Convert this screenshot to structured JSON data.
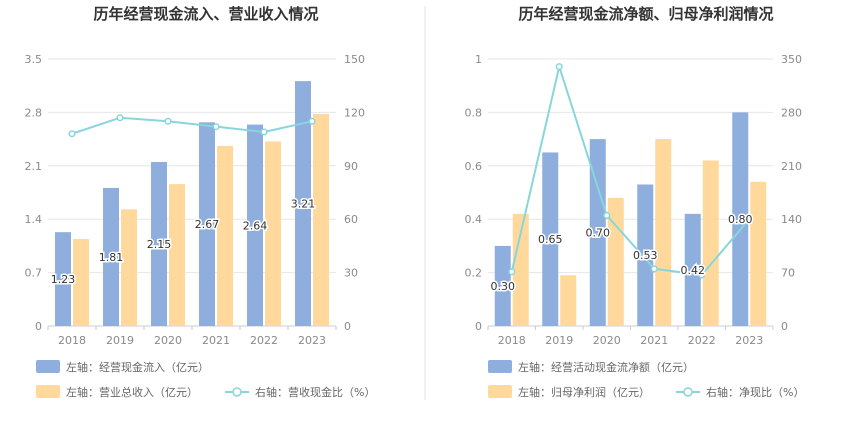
{
  "colors": {
    "bar_primary": "#8eaedd",
    "bar_secondary": "#ffd99c",
    "line": "#88d6db",
    "grid": "#e6e6e6",
    "divider": "#e3e3e3"
  },
  "chart_data": [
    {
      "type": "bar",
      "title": "历年经营现金流入、营业收入情况",
      "categories": [
        "2018",
        "2019",
        "2020",
        "2021",
        "2022",
        "2023"
      ],
      "ylim_left": [
        0,
        3.5
      ],
      "yticks_left": [
        "0",
        "0.7",
        "1.4",
        "2.1",
        "2.8",
        "3.5"
      ],
      "ylim_right": [
        0,
        150
      ],
      "yticks_right": [
        "0",
        "30",
        "60",
        "90",
        "120",
        "150"
      ],
      "grid": true,
      "legend_position": "bottom",
      "series": [
        {
          "name": "左轴：经营现金流入（亿元）",
          "axis": "left",
          "kind": "bar",
          "values": [
            1.23,
            1.81,
            2.15,
            2.67,
            2.64,
            3.21
          ],
          "labels": [
            "1.23",
            "1.81",
            "2.15",
            "2.67",
            "2.64",
            "3.21"
          ]
        },
        {
          "name": "左轴：营业总收入（亿元）",
          "axis": "left",
          "kind": "bar",
          "values": [
            1.14,
            1.53,
            1.86,
            2.36,
            2.42,
            2.78
          ]
        },
        {
          "name": "右轴：营收现金比（%）",
          "axis": "right",
          "kind": "line",
          "values": [
            108,
            117,
            115,
            112,
            109,
            115
          ]
        }
      ]
    },
    {
      "type": "bar",
      "title": "历年经营现金流净额、归母净利润情况",
      "categories": [
        "2018",
        "2019",
        "2020",
        "2021",
        "2022",
        "2023"
      ],
      "ylim_left": [
        0,
        1
      ],
      "yticks_left": [
        "0",
        "0.2",
        "0.4",
        "0.6",
        "0.8",
        "1"
      ],
      "ylim_right": [
        0,
        350
      ],
      "yticks_right": [
        "0",
        "70",
        "140",
        "210",
        "280",
        "350"
      ],
      "grid": true,
      "legend_position": "bottom",
      "series": [
        {
          "name": "左轴：经营活动现金流净额（亿元）",
          "axis": "left",
          "kind": "bar",
          "values": [
            0.3,
            0.65,
            0.7,
            0.53,
            0.42,
            0.8
          ],
          "labels": [
            "0.30",
            "0.65",
            "0.70",
            "0.53",
            "0.42",
            "0.80"
          ]
        },
        {
          "name": "左轴：归母净利润（亿元）",
          "axis": "left",
          "kind": "bar",
          "values": [
            0.42,
            0.19,
            0.48,
            0.7,
            0.62,
            0.54
          ]
        },
        {
          "name": "右轴：净现比（%）",
          "axis": "right",
          "kind": "line",
          "values": [
            71,
            340,
            145,
            75,
            67,
            140
          ]
        }
      ]
    }
  ]
}
